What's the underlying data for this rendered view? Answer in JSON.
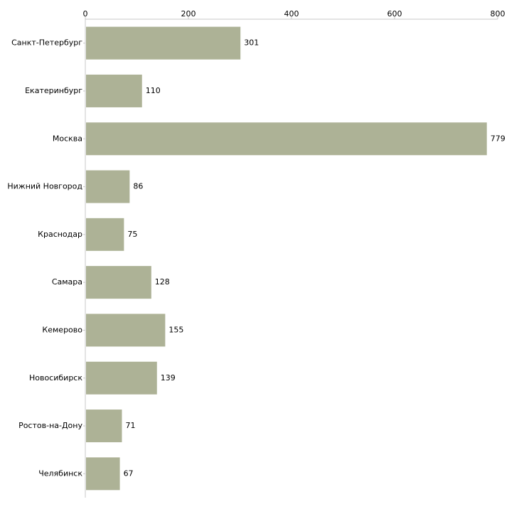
{
  "chart_data": {
    "type": "bar",
    "orientation": "horizontal",
    "title": "",
    "xlabel": "",
    "ylabel": "",
    "xlim": [
      0,
      800
    ],
    "x_ticks": [
      0,
      200,
      400,
      600,
      800
    ],
    "grid": false,
    "bar_color": "#adb296",
    "categories": [
      "Санкт-Петербург",
      "Екатеринбург",
      "Москва",
      "Нижний Новгород",
      "Краснодар",
      "Самара",
      "Кемерово",
      "Новосибирск",
      "Ростов-на-Дону",
      "Челябинск"
    ],
    "values": [
      301,
      110,
      779,
      86,
      75,
      128,
      155,
      139,
      71,
      67
    ]
  }
}
